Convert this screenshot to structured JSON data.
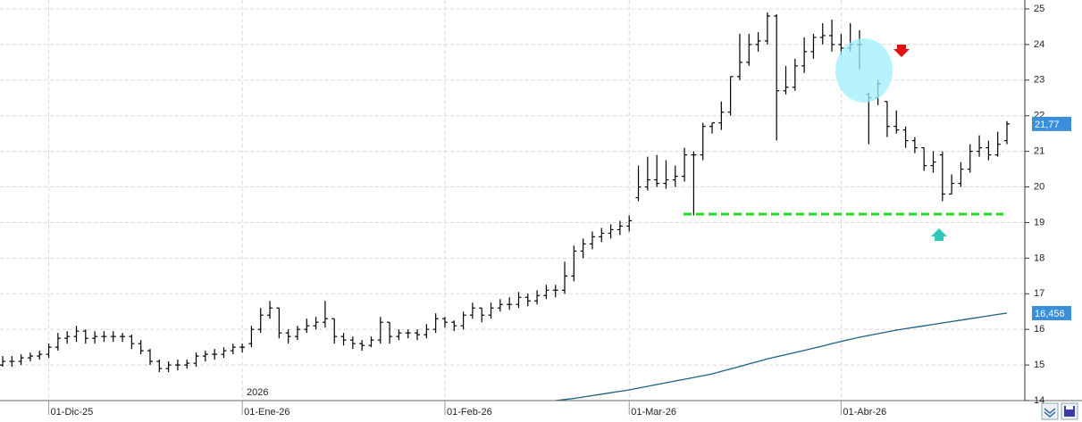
{
  "chart_data": {
    "type": "ohlc",
    "year_label": "2026",
    "categories": [
      null,
      null,
      null,
      null,
      null,
      "01-Dic-25",
      null,
      null,
      null,
      null,
      null,
      null,
      null,
      null,
      null,
      null,
      null,
      null,
      null,
      null,
      null,
      null,
      null,
      null,
      null,
      null,
      "01-Ene-26",
      null,
      null,
      null,
      null,
      null,
      null,
      null,
      null,
      null,
      null,
      null,
      null,
      null,
      null,
      null,
      null,
      null,
      null,
      null,
      null,
      null,
      "01-Feb-26",
      null,
      null,
      null,
      null,
      null,
      null,
      null,
      null,
      null,
      null,
      null,
      null,
      null,
      null,
      null,
      null,
      null,
      null,
      null,
      "01-Mar-26",
      null,
      null,
      null,
      null,
      null,
      null,
      null,
      null,
      null,
      null,
      null,
      null,
      null,
      null,
      null,
      null,
      null,
      null,
      null,
      null,
      null,
      null,
      "01-Abr-26",
      null,
      null,
      null,
      null,
      null,
      null,
      null,
      null,
      null,
      null,
      null,
      null,
      null,
      null,
      null,
      null,
      null,
      null
    ],
    "open": [
      15.0,
      15.1,
      15.1,
      15.2,
      15.25,
      15.3,
      15.5,
      15.75,
      15.8,
      15.95,
      15.75,
      15.8,
      15.8,
      15.8,
      15.8,
      15.6,
      15.4,
      15.1,
      14.9,
      15.0,
      15.0,
      15.05,
      15.25,
      15.3,
      15.3,
      15.4,
      15.5,
      15.6,
      16.0,
      16.4,
      16.6,
      15.9,
      15.8,
      16.0,
      16.1,
      16.2,
      16.3,
      15.8,
      15.7,
      15.6,
      15.55,
      15.7,
      16.2,
      15.8,
      15.9,
      15.9,
      15.85,
      16.0,
      16.3,
      16.2,
      16.1,
      16.4,
      16.6,
      16.4,
      16.6,
      16.7,
      16.7,
      16.9,
      16.8,
      16.95,
      17.1,
      17.1,
      17.5,
      18.2,
      18.4,
      18.6,
      18.7,
      18.8,
      18.9,
      19.7,
      20.0,
      20.2,
      20.1,
      20.2,
      20.3,
      20.9,
      20.9,
      21.7,
      21.8,
      22.1,
      23.1,
      23.5,
      24.0,
      24.1,
      24.8,
      22.7,
      22.8,
      23.4,
      23.8,
      24.2,
      24.25,
      24.0,
      23.9,
      24.0,
      22.6,
      22.5,
      22.4,
      21.7,
      21.6,
      21.3,
      21.1,
      20.6,
      20.9,
      19.8,
      20.1,
      20.5,
      21.0,
      21.1,
      20.9,
      21.3
    ],
    "high": [
      15.25,
      15.25,
      15.3,
      15.35,
      15.4,
      15.6,
      15.9,
      15.95,
      16.1,
      16.0,
      15.95,
      15.95,
      15.95,
      15.9,
      15.85,
      15.7,
      15.45,
      15.15,
      15.1,
      15.15,
      15.15,
      15.35,
      15.4,
      15.45,
      15.5,
      15.6,
      15.6,
      16.1,
      16.6,
      16.8,
      16.6,
      16.0,
      16.1,
      16.3,
      16.35,
      16.8,
      16.3,
      15.9,
      15.8,
      15.7,
      15.8,
      16.35,
      16.2,
      16.0,
      16.0,
      16.0,
      16.15,
      16.45,
      16.35,
      16.25,
      16.5,
      16.75,
      16.6,
      16.75,
      16.85,
      16.9,
      17.05,
      17.0,
      17.1,
      17.25,
      17.25,
      17.9,
      18.35,
      18.55,
      18.75,
      18.85,
      18.95,
      19.05,
      19.2,
      20.6,
      20.85,
      20.9,
      20.75,
      20.6,
      21.1,
      21.0,
      21.8,
      21.8,
      22.4,
      23.1,
      24.3,
      24.3,
      24.35,
      24.9,
      24.85,
      23.4,
      23.6,
      24.2,
      24.3,
      24.6,
      24.7,
      24.3,
      24.6,
      24.4,
      22.65,
      23.0,
      22.4,
      22.15,
      21.7,
      21.4,
      21.1,
      21.0,
      21.0,
      20.35,
      20.7,
      21.2,
      21.45,
      21.3,
      21.55,
      21.85
    ],
    "low": [
      14.95,
      14.95,
      15.0,
      15.1,
      15.15,
      15.2,
      15.4,
      15.6,
      15.65,
      15.6,
      15.6,
      15.65,
      15.65,
      15.65,
      15.45,
      15.3,
      15.0,
      14.8,
      14.8,
      14.85,
      14.9,
      14.95,
      15.1,
      15.15,
      15.2,
      15.3,
      15.35,
      15.5,
      15.9,
      16.3,
      15.75,
      15.6,
      15.7,
      15.9,
      16.0,
      16.05,
      15.6,
      15.55,
      15.45,
      15.4,
      15.5,
      15.6,
      15.6,
      15.7,
      15.75,
      15.7,
      15.75,
      15.9,
      16.05,
      15.95,
      16.0,
      16.3,
      16.2,
      16.3,
      16.5,
      16.55,
      16.6,
      16.65,
      16.7,
      16.85,
      16.9,
      17.0,
      17.35,
      18.0,
      18.25,
      18.45,
      18.55,
      18.65,
      18.75,
      19.6,
      19.9,
      20.0,
      19.95,
      20.0,
      20.15,
      19.2,
      20.75,
      21.5,
      21.6,
      22.0,
      23.0,
      23.4,
      23.8,
      24.0,
      21.3,
      22.6,
      22.7,
      23.2,
      23.6,
      24.0,
      23.8,
      23.7,
      23.8,
      23.3,
      21.2,
      22.3,
      21.4,
      21.5,
      21.1,
      20.95,
      20.45,
      20.4,
      19.6,
      19.8,
      20.0,
      20.4,
      20.85,
      20.75,
      20.85,
      21.2
    ],
    "close": [
      15.1,
      15.1,
      15.2,
      15.25,
      15.3,
      15.5,
      15.75,
      15.8,
      15.95,
      15.75,
      15.8,
      15.8,
      15.8,
      15.8,
      15.6,
      15.4,
      15.1,
      14.9,
      15.0,
      15.0,
      15.05,
      15.25,
      15.3,
      15.3,
      15.4,
      15.5,
      15.5,
      16.0,
      16.4,
      16.6,
      15.9,
      15.8,
      16.0,
      16.1,
      16.2,
      16.3,
      15.8,
      15.7,
      15.6,
      15.55,
      15.7,
      16.2,
      15.8,
      15.9,
      15.9,
      15.85,
      16.0,
      16.3,
      16.2,
      16.1,
      16.4,
      16.6,
      16.4,
      16.6,
      16.7,
      16.7,
      16.9,
      16.8,
      16.95,
      17.1,
      17.1,
      17.5,
      18.2,
      18.4,
      18.6,
      18.7,
      18.8,
      18.9,
      19.05,
      20.0,
      20.2,
      20.1,
      20.2,
      20.3,
      20.9,
      20.9,
      21.7,
      21.8,
      22.1,
      23.1,
      23.5,
      24.0,
      24.1,
      24.8,
      22.7,
      22.8,
      23.4,
      23.8,
      24.2,
      24.25,
      24.0,
      23.9,
      24.0,
      24.0,
      22.5,
      22.9,
      21.7,
      21.6,
      21.3,
      21.1,
      20.6,
      20.7,
      19.8,
      20.1,
      20.5,
      21.0,
      21.1,
      20.9,
      21.2,
      21.77
    ],
    "close_label": "21,77",
    "color": "#000000",
    "label_color": "#3a8fdc",
    "ma": {
      "color": "#1f5f7f",
      "value_label": "16,456",
      "values": [
        null,
        null,
        null,
        null,
        null,
        null,
        null,
        null,
        null,
        null,
        null,
        null,
        null,
        null,
        null,
        null,
        null,
        null,
        null,
        null,
        null,
        null,
        null,
        null,
        null,
        null,
        null,
        null,
        null,
        null,
        null,
        null,
        null,
        null,
        null,
        null,
        null,
        null,
        null,
        null,
        null,
        null,
        null,
        null,
        null,
        null,
        null,
        null,
        null,
        null,
        null,
        null,
        null,
        null,
        null,
        null,
        null,
        null,
        null,
        null,
        14.0,
        14.03,
        14.06,
        14.1,
        14.14,
        14.18,
        14.22,
        14.26,
        14.3,
        14.35,
        14.4,
        14.45,
        14.5,
        14.55,
        14.6,
        14.65,
        14.7,
        14.75,
        14.82,
        14.89,
        14.96,
        15.03,
        15.1,
        15.17,
        15.23,
        15.29,
        15.35,
        15.41,
        15.47,
        15.53,
        15.6,
        15.66,
        15.72,
        15.78,
        15.83,
        15.88,
        15.93,
        15.98,
        16.02,
        16.06,
        16.1,
        16.14,
        16.18,
        16.22,
        16.26,
        16.3,
        16.34,
        16.38,
        16.42,
        16.456
      ]
    },
    "ylim": [
      14,
      25.25
    ],
    "yticks": [
      14,
      15,
      16,
      17,
      18,
      19,
      20,
      21,
      22,
      23,
      24,
      25
    ],
    "grid": true
  }
}
